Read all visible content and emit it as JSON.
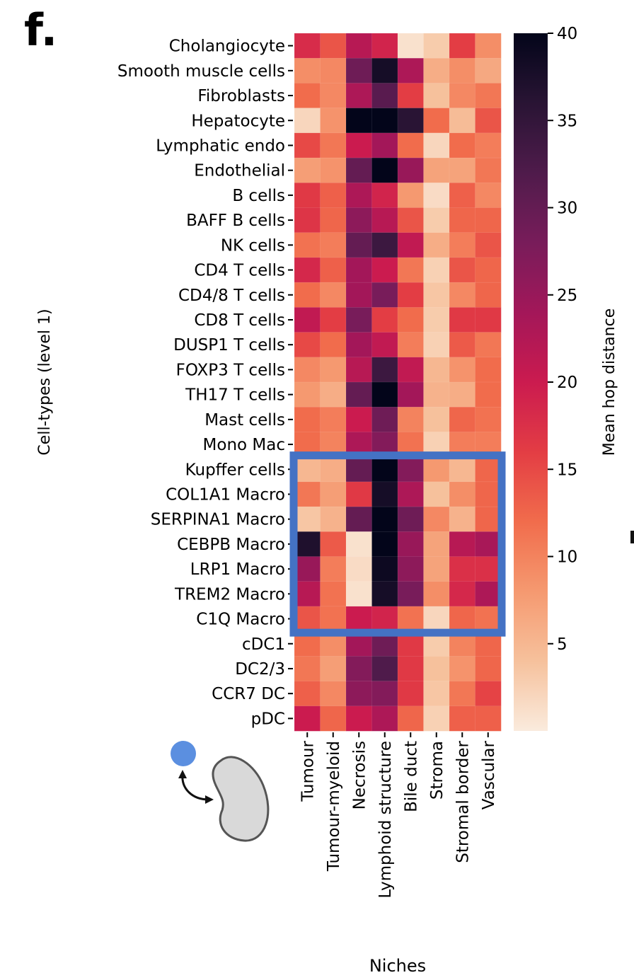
{
  "panel_label": "f.",
  "chart_data": {
    "type": "heatmap",
    "title": "",
    "xlabel": "Niches",
    "ylabel": "Cell-types (level 1)",
    "colorbar_label": "Mean hop distance",
    "colormap": "rocket_r",
    "vmin": 0,
    "vmax": 40,
    "colorbar_ticks": [
      5,
      10,
      15,
      20,
      25,
      30,
      35,
      40
    ],
    "x_categories": [
      "Tumour",
      "Tumour-myeloid",
      "Necrosis",
      "Lymphoid structure",
      "Bile duct",
      "Stroma",
      "Stromal border",
      "Vascular"
    ],
    "y_categories": [
      "Cholangiocyte",
      "Smooth muscle cells",
      "Fibroblasts",
      "Hepatocyte",
      "Lymphatic endo",
      "Endothelial",
      "B cells",
      "BAFF B cells",
      "NK cells",
      "CD4 T cells",
      "CD4/8 T cells",
      "CD8 T cells",
      "DUSP1 T cells",
      "FOXP3 T cells",
      "TH17 T cells",
      "Mast cells",
      "Mono Mac",
      "Kupffer cells",
      "COL1A1 Macro",
      "SERPINA1 Macro",
      "CEBPB Macro",
      "LRP1 Macro",
      "TREM2 Macro",
      "C1Q Macro",
      "cDC1",
      "DC2/3",
      "CCR7 DC",
      "pDC"
    ],
    "values": [
      [
        18,
        14,
        22,
        19,
        1,
        3,
        16,
        9
      ],
      [
        9,
        9.5,
        29,
        38,
        23,
        6,
        9,
        6.5
      ],
      [
        12,
        9.5,
        23,
        31,
        16,
        4,
        9.5,
        11
      ],
      [
        2,
        8.5,
        40,
        40,
        36,
        12,
        4.5,
        14
      ],
      [
        15,
        11,
        20,
        24,
        12,
        2,
        12,
        10.5
      ],
      [
        7.5,
        8.5,
        30,
        40,
        25,
        7,
        7,
        11
      ],
      [
        16.5,
        13,
        23,
        19,
        8,
        1.5,
        13,
        9.5
      ],
      [
        17,
        12.5,
        26,
        22,
        14,
        3,
        12.5,
        12.5
      ],
      [
        11.5,
        10.5,
        30,
        34,
        21,
        6,
        10.5,
        14
      ],
      [
        18.5,
        13,
        24,
        20,
        11,
        2.5,
        14,
        12.5
      ],
      [
        12,
        9.5,
        24,
        28,
        16,
        3.5,
        9.5,
        12.5
      ],
      [
        21,
        16,
        28,
        16,
        12,
        3,
        16.5,
        16.5
      ],
      [
        15,
        12,
        24,
        21,
        10.5,
        2.5,
        13.5,
        11
      ],
      [
        9.5,
        8,
        22,
        34,
        21,
        5,
        8.5,
        12
      ],
      [
        8,
        6,
        30,
        40,
        24,
        5.5,
        6,
        12
      ],
      [
        12,
        10.5,
        20,
        29,
        10,
        4,
        12.5,
        11.5
      ],
      [
        12,
        10,
        23,
        27,
        11.5,
        2.5,
        10.5,
        10.5
      ],
      [
        5,
        6,
        30,
        40,
        27,
        8,
        5,
        12.5
      ],
      [
        11,
        7.5,
        16.5,
        38,
        23,
        4,
        9,
        12.5
      ],
      [
        3.5,
        5.5,
        30,
        40,
        29,
        9.5,
        5.5,
        12.5
      ],
      [
        37,
        13.5,
        1,
        40,
        25,
        7,
        22,
        23.5
      ],
      [
        25,
        10.5,
        1.5,
        39,
        26,
        7,
        17.5,
        17.5
      ],
      [
        22,
        11.5,
        1,
        38,
        28,
        9,
        18.5,
        23
      ],
      [
        14,
        11.5,
        20,
        19,
        11.5,
        2,
        12.5,
        11.5
      ],
      [
        12,
        9,
        24,
        29,
        16.5,
        3,
        10,
        12.5
      ],
      [
        11,
        7.5,
        27,
        32,
        16.5,
        4,
        8.5,
        12.5
      ],
      [
        13,
        9.5,
        26,
        27,
        16.5,
        3.5,
        11,
        15.5
      ],
      [
        20,
        12.5,
        20,
        23,
        12.5,
        2.5,
        13,
        13
      ]
    ],
    "highlight_box": {
      "rows": [
        "Kupffer cells",
        "C1Q Macro"
      ],
      "columns": [
        "Tumour",
        "Vascular"
      ],
      "color": "#4472c4"
    }
  },
  "icon": {
    "name": "cell-to-niche-interaction",
    "cell_color": "#5b8fe0",
    "niche_fill": "#d9d9d9",
    "niche_stroke": "#555555"
  }
}
